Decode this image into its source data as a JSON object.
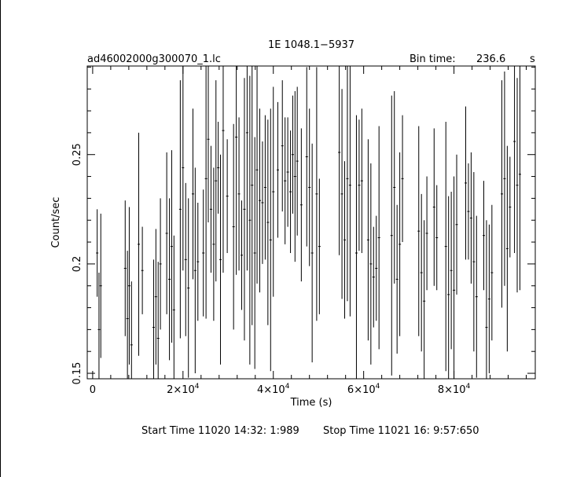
{
  "chart_data": {
    "type": "line",
    "title": "1E 1048.1−5937",
    "file_label": "ad46002000g300070_1.lc",
    "bin_time_label": "Bin time:",
    "bin_time_value": "236.6",
    "bin_time_unit": "s",
    "xlabel": "Time (s)",
    "ylabel": "Count/sec",
    "xlim": [
      -1200,
      98000
    ],
    "ylim": [
      0.1475,
      0.2905
    ],
    "x_ticks": [
      0,
      20000,
      40000,
      60000,
      80000
    ],
    "x_tick_labels": [
      "0",
      "2×10",
      "4×10",
      "6×10",
      "8×10"
    ],
    "x_tick_exponent": "4",
    "y_ticks": [
      0.15,
      0.2,
      0.25
    ],
    "y_tick_labels": [
      "0.15",
      "0.2",
      "0.25"
    ],
    "grid": false,
    "series": [
      {
        "x": [
          1000,
          1400,
          1800,
          7200,
          7700,
          8100,
          8600,
          10200,
          11000,
          13500,
          14000,
          14500,
          15000,
          16400,
          17000,
          17500,
          18000,
          19400,
          20000,
          20600,
          21200,
          22200,
          22700,
          23300,
          24500,
          25100,
          25600,
          26200,
          26800,
          27300,
          27800,
          28300,
          28900,
          29800,
          31200,
          31800,
          32400,
          33000,
          33600,
          34200,
          34800,
          35300,
          35900,
          36400,
          37000,
          37600,
          38200,
          38800,
          39400,
          40000,
          41000,
          42000,
          42600,
          43200,
          43800,
          44300,
          44800,
          45300,
          46200,
          47400,
          48000,
          48600,
          49600,
          50200,
          54600,
          55200,
          55800,
          56400,
          57000,
          58400,
          59000,
          59600,
          61000,
          61600,
          62200,
          62800,
          63400,
          66200,
          66800,
          67400,
          68000,
          68600,
          72200,
          72800,
          73400,
          74000,
          75600,
          76200,
          78200,
          78800,
          79400,
          80000,
          80600,
          82600,
          83200,
          83800,
          84400,
          85000,
          86600,
          87200,
          87800,
          88400,
          90600,
          91200,
          91800,
          92400,
          93400,
          94000,
          94600
        ],
        "y": [
          0.205,
          0.17,
          0.19,
          0.198,
          0.175,
          0.19,
          0.163,
          0.209,
          0.197,
          0.171,
          0.185,
          0.166,
          0.2,
          0.214,
          0.193,
          0.208,
          0.179,
          0.225,
          0.244,
          0.202,
          0.189,
          0.232,
          0.197,
          0.201,
          0.205,
          0.239,
          0.257,
          0.225,
          0.209,
          0.238,
          0.244,
          0.202,
          0.261,
          0.231,
          0.217,
          0.258,
          0.232,
          0.204,
          0.225,
          0.26,
          0.22,
          0.236,
          0.205,
          0.243,
          0.229,
          0.228,
          0.235,
          0.219,
          0.211,
          0.233,
          0.243,
          0.254,
          0.238,
          0.242,
          0.233,
          0.25,
          0.24,
          0.247,
          0.227,
          0.249,
          0.235,
          0.205,
          0.232,
          0.208,
          0.251,
          0.232,
          0.211,
          0.239,
          0.236,
          0.205,
          0.236,
          0.238,
          0.211,
          0.2,
          0.194,
          0.198,
          0.212,
          0.213,
          0.235,
          0.193,
          0.209,
          0.239,
          0.215,
          0.196,
          0.183,
          0.214,
          0.226,
          0.212,
          0.208,
          0.186,
          0.197,
          0.188,
          0.218,
          0.237,
          0.224,
          0.221,
          0.201,
          0.185,
          0.213,
          0.171,
          0.184,
          0.196,
          0.232,
          0.239,
          0.207,
          0.226,
          0.256,
          0.236,
          0.241
        ],
        "yerr": [
          0.02,
          0.026,
          0.033,
          0.031,
          0.031,
          0.036,
          0.029,
          0.051,
          0.02,
          0.031,
          0.031,
          0.035,
          0.03,
          0.037,
          0.037,
          0.044,
          0.034,
          0.059,
          0.047,
          0.035,
          0.041,
          0.039,
          0.047,
          0.027,
          0.029,
          0.064,
          0.038,
          0.029,
          0.035,
          0.046,
          0.021,
          0.048,
          0.065,
          0.026,
          0.047,
          0.063,
          0.035,
          0.025,
          0.06,
          0.063,
          0.066,
          0.064,
          0.053,
          0.052,
          0.042,
          0.028,
          0.033,
          0.047,
          0.06,
          0.048,
          0.031,
          0.03,
          0.029,
          0.025,
          0.028,
          0.027,
          0.039,
          0.034,
          0.035,
          0.041,
          0.036,
          0.05,
          0.058,
          0.031,
          0.047,
          0.048,
          0.036,
          0.056,
          0.06,
          0.063,
          0.03,
          0.033,
          0.046,
          0.046,
          0.023,
          0.024,
          0.051,
          0.064,
          0.044,
          0.034,
          0.042,
          0.029,
          0.048,
          0.036,
          0.037,
          0.026,
          0.036,
          0.024,
          0.057,
          0.045,
          0.036,
          0.052,
          0.032,
          0.035,
          0.022,
          0.03,
          0.041,
          0.037,
          0.025,
          0.049,
          0.034,
          0.031,
          0.052,
          0.049,
          0.047,
          0.023,
          0.051,
          0.049,
          0.053
        ]
      }
    ]
  },
  "footer": {
    "start_time": "Start Time 11020 14:32: 1:989",
    "stop_time": "Stop Time 11021 16: 9:57:650"
  }
}
